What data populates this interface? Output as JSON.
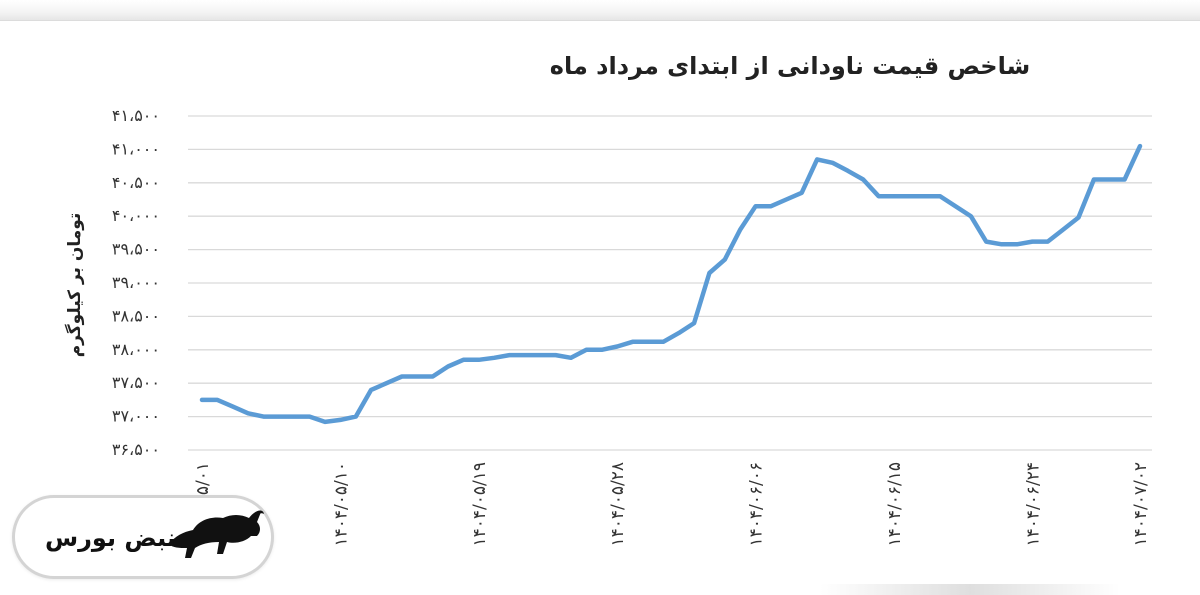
{
  "chart_data": {
    "type": "line",
    "title": "شاخص قیمت ناودانی از ابتدای مرداد ماه",
    "ylabel": "تومان بر کیلوگرم",
    "xlabel": "",
    "ylim": [
      36500,
      41500
    ],
    "y_ticks": [
      36500,
      37000,
      37500,
      38000,
      38500,
      39000,
      39500,
      40000,
      40500,
      41000,
      41500
    ],
    "y_tick_labels": [
      "۳۶،۵۰۰",
      "۳۷،۰۰۰",
      "۳۷،۵۰۰",
      "۳۸،۰۰۰",
      "۳۸،۵۰۰",
      "۳۹،۰۰۰",
      "۳۹،۵۰۰",
      "۴۰،۰۰۰",
      "۴۰،۵۰۰",
      "۴۱،۰۰۰",
      "۴۱،۵۰۰"
    ],
    "x_tick_labels": [
      "۵/۰۱",
      "۱۴۰۴/۰۵/۱۰",
      "۱۴۰۴/۰۵/۱۹",
      "۱۴۰۴/۰۵/۲۸",
      "۱۴۰۴/۰۶/۰۶",
      "۱۴۰۴/۰۶/۱۵",
      "۱۴۰۴/۰۶/۲۴",
      "۱۴۰۴/۰۷/۰۲"
    ],
    "grid": true,
    "color": "#5b9bd5",
    "series": [
      {
        "values": [
          37250,
          37250,
          37150,
          37050,
          37000,
          37000,
          37000,
          37000,
          36920,
          36950,
          37000,
          37400,
          37500,
          37600,
          37600,
          37600,
          37750,
          37850,
          37850,
          37880,
          37920,
          37920,
          37920,
          37920,
          37880,
          38000,
          38000,
          38050,
          38120,
          38120,
          38120,
          38250,
          38400,
          39150,
          39350,
          39800,
          40150,
          40150,
          40250,
          40350,
          40850,
          40800,
          40680,
          40550,
          40300,
          40300,
          40300,
          40300,
          40300,
          40150,
          40000,
          39620,
          39580,
          39580,
          39620,
          39620,
          39800,
          39980,
          40550,
          40550,
          40550,
          41050
        ]
      }
    ]
  },
  "branding": {
    "logo_text": "نبض بورس",
    "logo_icon": "bull-icon"
  }
}
